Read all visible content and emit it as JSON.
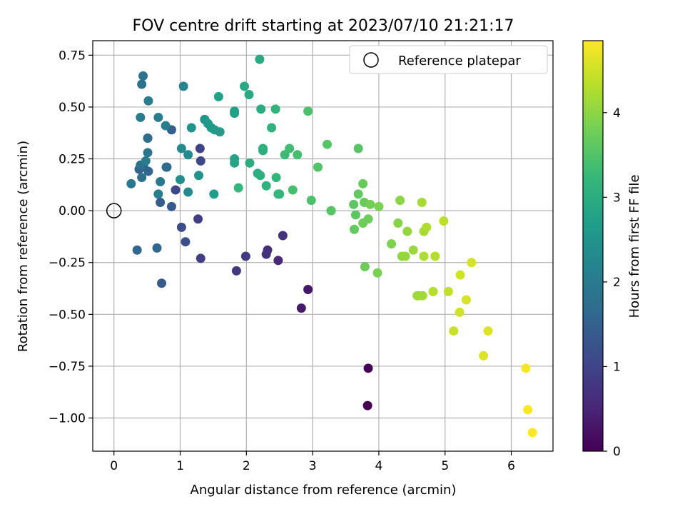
{
  "chart_data": {
    "type": "scatter",
    "title": "FOV centre drift starting at 2023/07/10 21:21:17",
    "xlabel": "Angular distance from reference (arcmin)",
    "ylabel": "Rotation from reference (arcmin)",
    "xlim": [
      -0.32,
      6.63
    ],
    "ylim": [
      -1.16,
      0.82
    ],
    "xticks": [
      "0",
      "1",
      "2",
      "3",
      "4",
      "5",
      "6"
    ],
    "xtick_values": [
      0,
      1,
      2,
      3,
      4,
      5,
      6
    ],
    "yticks": [
      "0.75",
      "0.50",
      "0.25",
      "0.00",
      "−0.25",
      "−0.50",
      "−0.75",
      "−1.00"
    ],
    "ytick_values": [
      0.75,
      0.5,
      0.25,
      0.0,
      -0.25,
      -0.5,
      -0.75,
      -1.0
    ],
    "grid": true,
    "legend": {
      "placement": "top-right",
      "entries": [
        "Reference platepar"
      ]
    },
    "reference_point": {
      "x": 0.0,
      "y": 0.0
    },
    "colorbar": {
      "label": "Hours from first FF file",
      "colormap": "viridis",
      "range": [
        0,
        4.85
      ],
      "ticks": [
        "0",
        "1",
        "2",
        "3",
        "4"
      ],
      "tick_values": [
        0,
        1,
        2,
        3,
        4
      ]
    },
    "points": [
      [
        3.83,
        -0.94,
        0.0
      ],
      [
        3.84,
        -0.76,
        0.05
      ],
      [
        2.93,
        -0.38,
        0.3
      ],
      [
        2.83,
        -0.47,
        0.35
      ],
      [
        2.48,
        -0.24,
        0.55
      ],
      [
        2.32,
        -0.19,
        0.65
      ],
      [
        2.3,
        -0.21,
        0.7
      ],
      [
        2.55,
        -0.12,
        0.7
      ],
      [
        1.85,
        -0.29,
        0.8
      ],
      [
        1.99,
        -0.22,
        0.85
      ],
      [
        1.27,
        -0.04,
        0.9
      ],
      [
        1.31,
        -0.23,
        0.9
      ],
      [
        1.3,
        0.3,
        1.0
      ],
      [
        1.31,
        0.24,
        1.05
      ],
      [
        0.93,
        0.1,
        1.05
      ],
      [
        1.02,
        -0.08,
        1.15
      ],
      [
        1.08,
        -0.15,
        1.2
      ],
      [
        0.72,
        -0.35,
        1.35
      ],
      [
        0.87,
        0.02,
        1.35
      ],
      [
        0.7,
        0.04,
        1.4
      ],
      [
        0.87,
        0.39,
        1.45
      ],
      [
        0.38,
        0.2,
        1.5
      ],
      [
        0.35,
        -0.19,
        1.6
      ],
      [
        0.65,
        -0.18,
        1.6
      ],
      [
        0.52,
        0.19,
        1.6
      ],
      [
        0.45,
        0.21,
        1.6
      ],
      [
        0.79,
        0.21,
        1.7
      ],
      [
        0.8,
        0.21,
        1.7
      ],
      [
        0.51,
        0.35,
        1.75
      ],
      [
        0.51,
        0.35,
        1.75
      ],
      [
        0.4,
        0.22,
        1.8
      ],
      [
        0.42,
        0.16,
        1.8
      ],
      [
        0.42,
        0.61,
        1.8
      ],
      [
        0.44,
        0.65,
        1.85
      ],
      [
        0.51,
        0.28,
        1.9
      ],
      [
        0.7,
        0.14,
        1.95
      ],
      [
        0.26,
        0.13,
        1.95
      ],
      [
        0.48,
        0.24,
        2.0
      ],
      [
        0.4,
        0.45,
        2.0
      ],
      [
        0.52,
        0.53,
        2.05
      ],
      [
        0.67,
        0.45,
        2.05
      ],
      [
        0.78,
        0.41,
        2.1
      ],
      [
        0.67,
        0.08,
        2.1
      ],
      [
        1.05,
        0.6,
        2.2
      ],
      [
        1.12,
        0.09,
        2.3
      ],
      [
        1.12,
        0.27,
        2.3
      ],
      [
        1.02,
        0.3,
        2.3
      ],
      [
        1.0,
        0.15,
        2.35
      ],
      [
        1.28,
        0.17,
        2.5
      ],
      [
        1.17,
        0.4,
        2.5
      ],
      [
        1.37,
        0.44,
        2.55
      ],
      [
        1.37,
        0.44,
        2.55
      ],
      [
        1.42,
        0.42,
        2.6
      ],
      [
        1.47,
        0.4,
        2.6
      ],
      [
        1.52,
        0.39,
        2.65
      ],
      [
        1.6,
        0.38,
        2.65
      ],
      [
        1.51,
        0.08,
        2.7
      ],
      [
        1.58,
        0.55,
        2.75
      ],
      [
        1.82,
        0.47,
        2.75
      ],
      [
        1.82,
        0.48,
        2.75
      ],
      [
        1.82,
        0.25,
        2.8
      ],
      [
        1.82,
        0.23,
        2.85
      ],
      [
        1.97,
        0.6,
        2.9
      ],
      [
        2.04,
        0.56,
        2.9
      ],
      [
        2.22,
        0.49,
        2.95
      ],
      [
        2.2,
        0.73,
        2.95
      ],
      [
        2.05,
        0.23,
        3.0
      ],
      [
        2.17,
        0.18,
        3.0
      ],
      [
        2.21,
        0.17,
        3.05
      ],
      [
        2.25,
        0.29,
        3.05
      ],
      [
        2.25,
        0.3,
        3.05
      ],
      [
        2.3,
        0.12,
        3.1
      ],
      [
        2.38,
        0.4,
        3.1
      ],
      [
        2.44,
        0.49,
        3.15
      ],
      [
        2.45,
        0.16,
        3.2
      ],
      [
        2.48,
        0.08,
        3.2
      ],
      [
        2.5,
        0.08,
        3.2
      ],
      [
        1.88,
        0.11,
        3.2
      ],
      [
        2.58,
        0.27,
        3.3
      ],
      [
        2.65,
        0.3,
        3.35
      ],
      [
        2.7,
        0.1,
        3.4
      ],
      [
        2.77,
        0.27,
        3.4
      ],
      [
        2.93,
        0.48,
        3.45
      ],
      [
        2.98,
        0.05,
        3.45
      ],
      [
        3.08,
        0.21,
        3.5
      ],
      [
        3.22,
        0.32,
        3.55
      ],
      [
        3.28,
        0.0,
        3.55
      ],
      [
        3.28,
        0.0,
        3.55
      ],
      [
        3.69,
        0.3,
        3.55
      ],
      [
        3.62,
        0.03,
        3.6
      ],
      [
        3.65,
        -0.02,
        3.6
      ],
      [
        3.63,
        -0.09,
        3.65
      ],
      [
        3.69,
        0.08,
        3.65
      ],
      [
        3.76,
        0.13,
        3.7
      ],
      [
        3.78,
        0.04,
        3.7
      ],
      [
        3.76,
        -0.06,
        3.75
      ],
      [
        3.79,
        -0.27,
        3.75
      ],
      [
        3.84,
        -0.04,
        3.75
      ],
      [
        3.87,
        0.03,
        3.8
      ],
      [
        3.98,
        -0.3,
        3.85
      ],
      [
        4.0,
        0.02,
        3.85
      ],
      [
        4.19,
        -0.16,
        3.9
      ],
      [
        4.29,
        -0.06,
        3.95
      ],
      [
        4.32,
        0.05,
        4.0
      ],
      [
        4.35,
        -0.22,
        4.0
      ],
      [
        4.4,
        -0.22,
        4.05
      ],
      [
        4.43,
        -0.1,
        4.05
      ],
      [
        4.52,
        -0.19,
        4.1
      ],
      [
        4.58,
        -0.41,
        4.1
      ],
      [
        4.6,
        -0.41,
        4.15
      ],
      [
        4.66,
        -0.41,
        4.15
      ],
      [
        4.65,
        0.04,
        4.2
      ],
      [
        4.68,
        -0.1,
        4.2
      ],
      [
        4.68,
        -0.22,
        4.25
      ],
      [
        4.72,
        -0.08,
        4.25
      ],
      [
        4.82,
        -0.39,
        4.3
      ],
      [
        4.85,
        -0.22,
        4.3
      ],
      [
        4.98,
        -0.05,
        4.35
      ],
      [
        5.05,
        -0.39,
        4.4
      ],
      [
        5.13,
        -0.58,
        4.45
      ],
      [
        5.22,
        -0.49,
        4.5
      ],
      [
        5.23,
        -0.31,
        4.5
      ],
      [
        5.32,
        -0.43,
        4.55
      ],
      [
        5.4,
        -0.25,
        4.55
      ],
      [
        5.58,
        -0.7,
        4.6
      ],
      [
        5.65,
        -0.58,
        4.6
      ],
      [
        6.22,
        -0.76,
        4.8
      ],
      [
        6.25,
        -0.96,
        4.82
      ],
      [
        6.32,
        -1.07,
        4.85
      ]
    ]
  }
}
